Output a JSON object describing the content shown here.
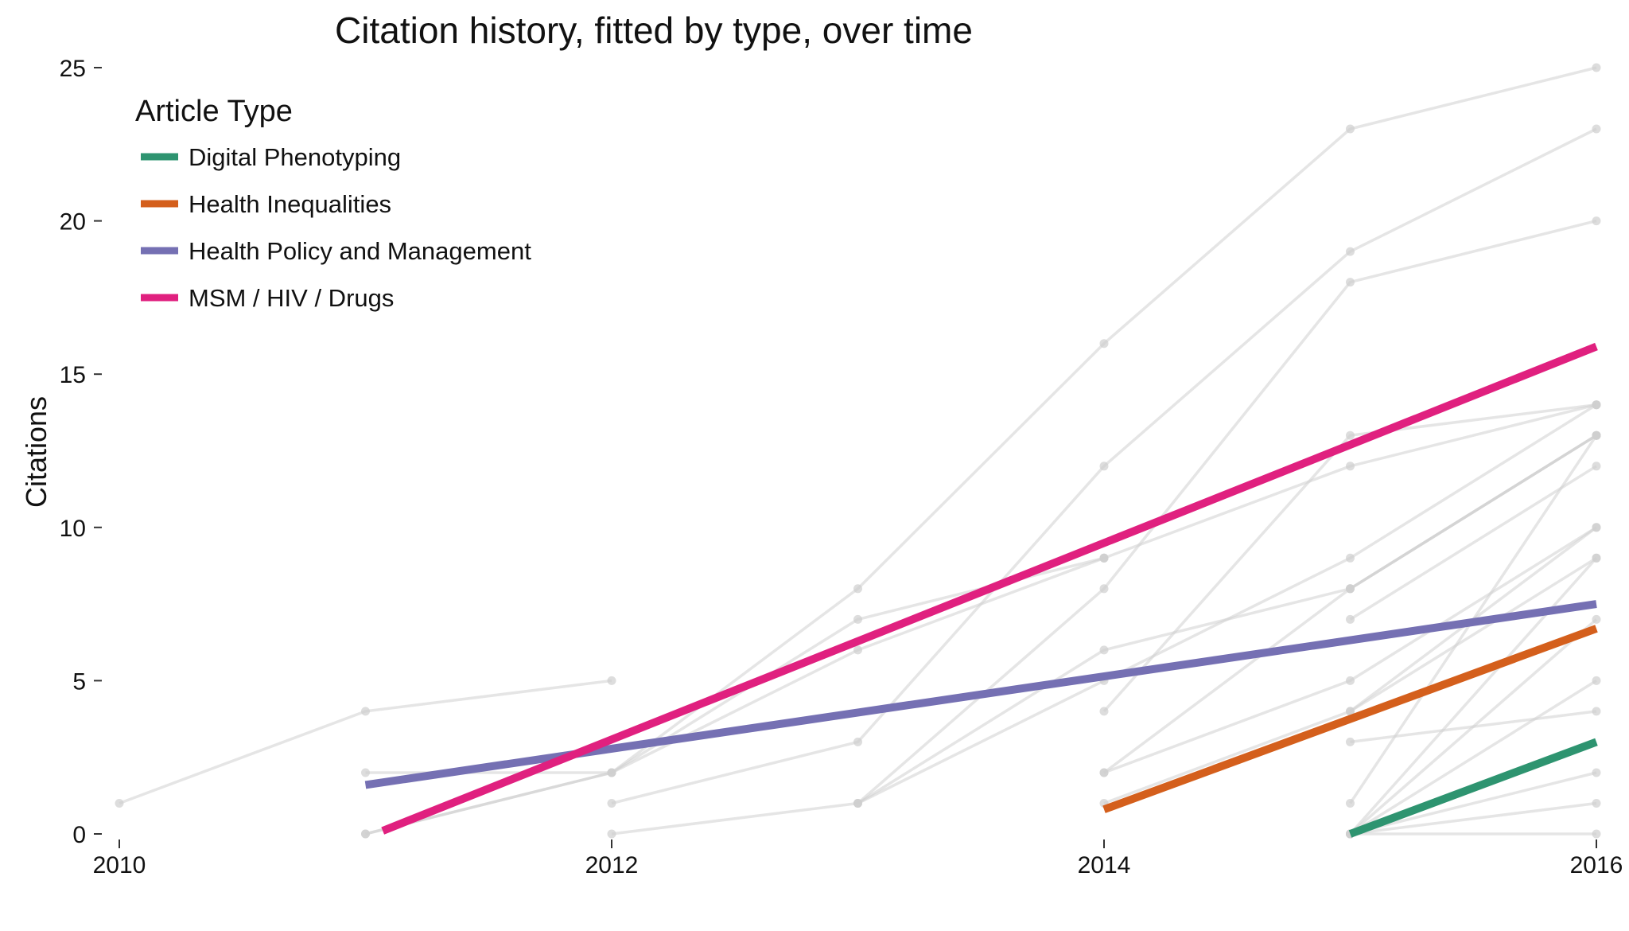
{
  "chart_data": {
    "type": "line",
    "title": "Citation history, fitted by type, over time",
    "ylabel": "Citations",
    "xlabel": "",
    "xlim": [
      2010,
      2016
    ],
    "ylim": [
      0,
      25
    ],
    "x_ticks": [
      "2010",
      "2012",
      "2014",
      "2016"
    ],
    "y_ticks": [
      "0",
      "5",
      "10",
      "15",
      "20",
      "25"
    ],
    "grid": false,
    "legend": {
      "title": "Article Type",
      "position": "top-left"
    },
    "series": [
      {
        "name": "Digital Phenotyping",
        "color": "#2E9470",
        "x": [
          2015,
          2016
        ],
        "y": [
          0.0,
          3.0
        ]
      },
      {
        "name": "Health Inequalities",
        "color": "#D45F1C",
        "x": [
          2014,
          2016
        ],
        "y": [
          0.8,
          6.7
        ]
      },
      {
        "name": "Health Policy and Management",
        "color": "#7570B3",
        "x": [
          2011,
          2016
        ],
        "y": [
          1.6,
          7.5
        ]
      },
      {
        "name": "MSM / HIV / Drugs",
        "color": "#E0207F",
        "x": [
          2011.07,
          2016
        ],
        "y": [
          0.1,
          15.9
        ]
      }
    ],
    "background_series_color": "#cfcfcf",
    "background_series": [
      {
        "x": [
          2010,
          2011,
          2012
        ],
        "y": [
          1,
          4,
          5
        ]
      },
      {
        "x": [
          2011,
          2012,
          2013,
          2014
        ],
        "y": [
          2,
          2,
          6,
          9
        ]
      },
      {
        "x": [
          2011,
          2012,
          2013,
          2014
        ],
        "y": [
          0,
          2,
          7,
          9
        ]
      },
      {
        "x": [
          2011,
          2012,
          2013,
          2014,
          2015,
          2016
        ],
        "y": [
          0,
          2,
          8,
          16,
          23,
          25
        ]
      },
      {
        "x": [
          2012,
          2013,
          2014,
          2015,
          2016
        ],
        "y": [
          1,
          3,
          12,
          19,
          23
        ]
      },
      {
        "x": [
          2012,
          2013,
          2014,
          2015,
          2016
        ],
        "y": [
          0,
          1,
          5,
          9,
          14
        ]
      },
      {
        "x": [
          2013,
          2014,
          2015,
          2016
        ],
        "y": [
          1,
          6,
          8,
          13
        ]
      },
      {
        "x": [
          2013,
          2014,
          2015,
          2016
        ],
        "y": [
          1,
          8,
          18,
          20
        ]
      },
      {
        "x": [
          2014,
          2015,
          2016
        ],
        "y": [
          9,
          12,
          14
        ]
      },
      {
        "x": [
          2014,
          2015,
          2016
        ],
        "y": [
          4,
          13,
          14
        ]
      },
      {
        "x": [
          2014,
          2015,
          2016
        ],
        "y": [
          2,
          8,
          13
        ]
      },
      {
        "x": [
          2014,
          2015,
          2016
        ],
        "y": [
          2,
          5,
          10
        ]
      },
      {
        "x": [
          2014,
          2015,
          2016
        ],
        "y": [
          1,
          4,
          9
        ]
      },
      {
        "x": [
          2015,
          2016
        ],
        "y": [
          8,
          13
        ]
      },
      {
        "x": [
          2015,
          2016
        ],
        "y": [
          7,
          12
        ]
      },
      {
        "x": [
          2015,
          2016
        ],
        "y": [
          4,
          10
        ]
      },
      {
        "x": [
          2015,
          2016
        ],
        "y": [
          3,
          4
        ]
      },
      {
        "x": [
          2015,
          2016
        ],
        "y": [
          1,
          13
        ]
      },
      {
        "x": [
          2015,
          2016
        ],
        "y": [
          0,
          9
        ]
      },
      {
        "x": [
          2015,
          2016
        ],
        "y": [
          0,
          7
        ]
      },
      {
        "x": [
          2015,
          2016
        ],
        "y": [
          0,
          5
        ]
      },
      {
        "x": [
          2015,
          2016
        ],
        "y": [
          0,
          2
        ]
      },
      {
        "x": [
          2015,
          2016
        ],
        "y": [
          0,
          1
        ]
      },
      {
        "x": [
          2015,
          2016
        ],
        "y": [
          0,
          0
        ]
      }
    ]
  }
}
